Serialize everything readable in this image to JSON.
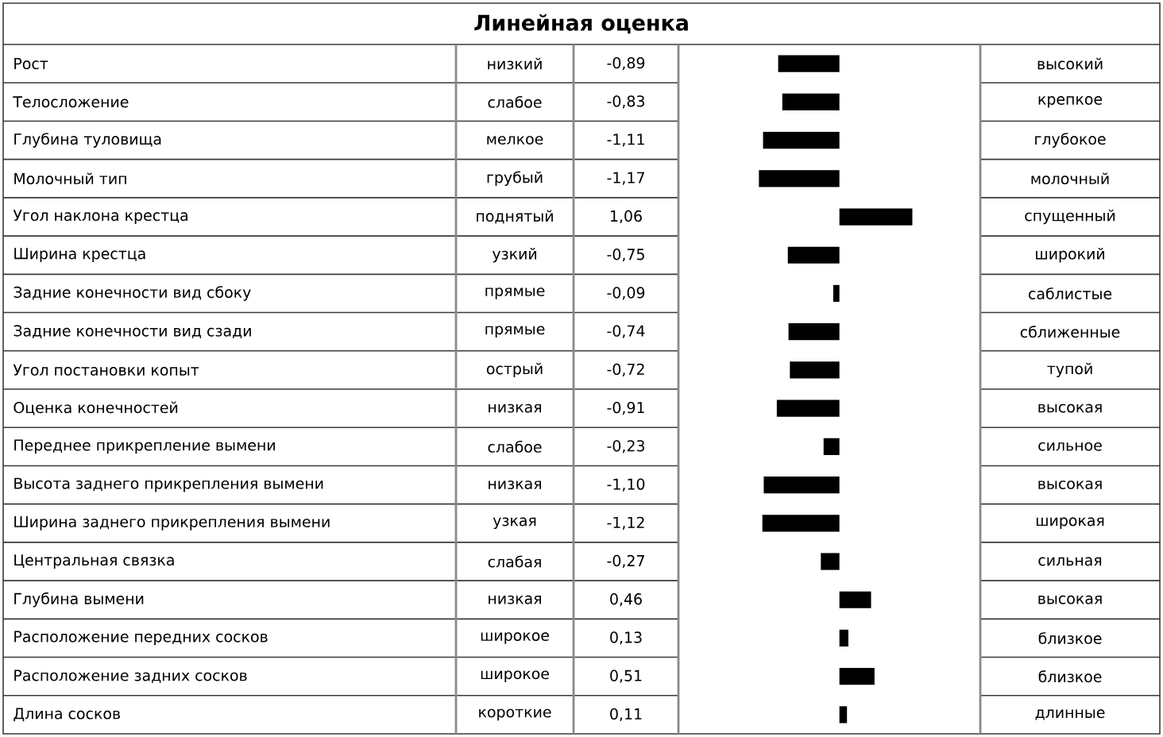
{
  "chart_data": {
    "type": "bar",
    "orientation": "horizontal",
    "title": "Линейная оценка",
    "categories": [
      "Рост",
      "Телосложение",
      "Глубина туловища",
      "Молочный тип",
      "Угол наклона крестца",
      "Ширина крестца",
      "Задние конечности вид сбоку",
      "Задние конечности вид сзади",
      "Угол постановки копыт",
      "Оценка конечностей",
      "Переднее прикрепление вымени",
      "Высота заднего прикрепления вымени",
      "Ширина заднего прикрепления вымени",
      "Центральная связка",
      "Глубина вымени",
      "Расположение передних сосков",
      "Расположение задних сосков",
      "Длина сосков"
    ],
    "values": [
      -0.89,
      -0.83,
      -1.11,
      -1.17,
      1.06,
      -0.75,
      -0.09,
      -0.74,
      -0.72,
      -0.91,
      -0.23,
      -1.1,
      -1.12,
      -0.27,
      0.46,
      0.13,
      0.51,
      0.11
    ],
    "value_labels": [
      "-0,89",
      "-0,83",
      "-1,11",
      "-1,17",
      "1,06",
      "-0,75",
      "-0,09",
      "-0,74",
      "-0,72",
      "-0,91",
      "-0,23",
      "-1,10",
      "-1,12",
      "-0,27",
      "0,46",
      "0,13",
      "0,51",
      "0,11"
    ],
    "color": "#000000",
    "tick_labels": "y",
    "annotations": [
      "низкий",
      "высокий",
      "слабое",
      "крепкое",
      "мелкое",
      "глубокое",
      "грубый",
      "молочный",
      "поднятый",
      "спущенный",
      "узкий",
      "широкий",
      "прямые",
      "саблистые",
      "прямые",
      "сближенные",
      "острый",
      "тупой",
      "низкая",
      "высокая",
      "слабое",
      "сильное",
      "низкая",
      "высокая",
      "узкая",
      "широкая",
      "слабая",
      "сильная",
      "низкая",
      "высокая",
      "широкое",
      "близкое",
      "широкое",
      "близкое",
      "короткие",
      "длинные"
    ]
  }
}
